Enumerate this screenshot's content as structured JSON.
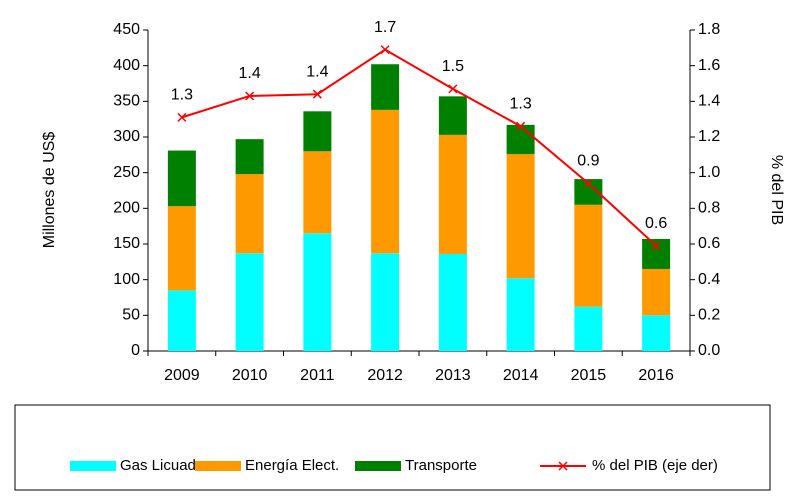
{
  "chart_data": {
    "type": "bar",
    "categories": [
      "2009",
      "2010",
      "2011",
      "2012",
      "2013",
      "2014",
      "2015",
      "2016"
    ],
    "y_label": "Millones de US$",
    "y2_label": "% del PIB",
    "stacked": true,
    "series": [
      {
        "name": "Gas Licuado",
        "color": "#00ffff",
        "values": [
          85,
          137,
          165,
          137,
          136,
          102,
          62,
          50
        ]
      },
      {
        "name": "Energía Elect.",
        "color": "#ff9900",
        "values": [
          118,
          111,
          115,
          201,
          167,
          174,
          143,
          65
        ]
      },
      {
        "name": "Transporte",
        "color": "#008000",
        "values": [
          78,
          49,
          56,
          64,
          54,
          41,
          36,
          42
        ]
      },
      {
        "name": "% del PIB (eje der)",
        "color": "#ff0000",
        "type": "line",
        "axis": "y2",
        "values": [
          1.31,
          1.43,
          1.44,
          1.69,
          1.47,
          1.26,
          0.94,
          0.59
        ],
        "value_labels": [
          "1.3",
          "1.4",
          "1.4",
          "1.7",
          "1.5",
          "1.3",
          "0.9",
          "0.6"
        ]
      }
    ],
    "ylim": [
      0,
      450
    ],
    "yticks": [
      0,
      50,
      100,
      150,
      200,
      250,
      300,
      350,
      400,
      450
    ],
    "y2lim": [
      0,
      1.8
    ],
    "y2ticks": [
      {
        "value": 0,
        "label": "0.0"
      },
      0.2,
      0.4,
      0.6,
      0.8,
      {
        "value": 1,
        "label": "1.0"
      },
      1.2,
      1.4,
      1.6,
      1.8
    ],
    "legend": "bottom",
    "grid": false
  }
}
